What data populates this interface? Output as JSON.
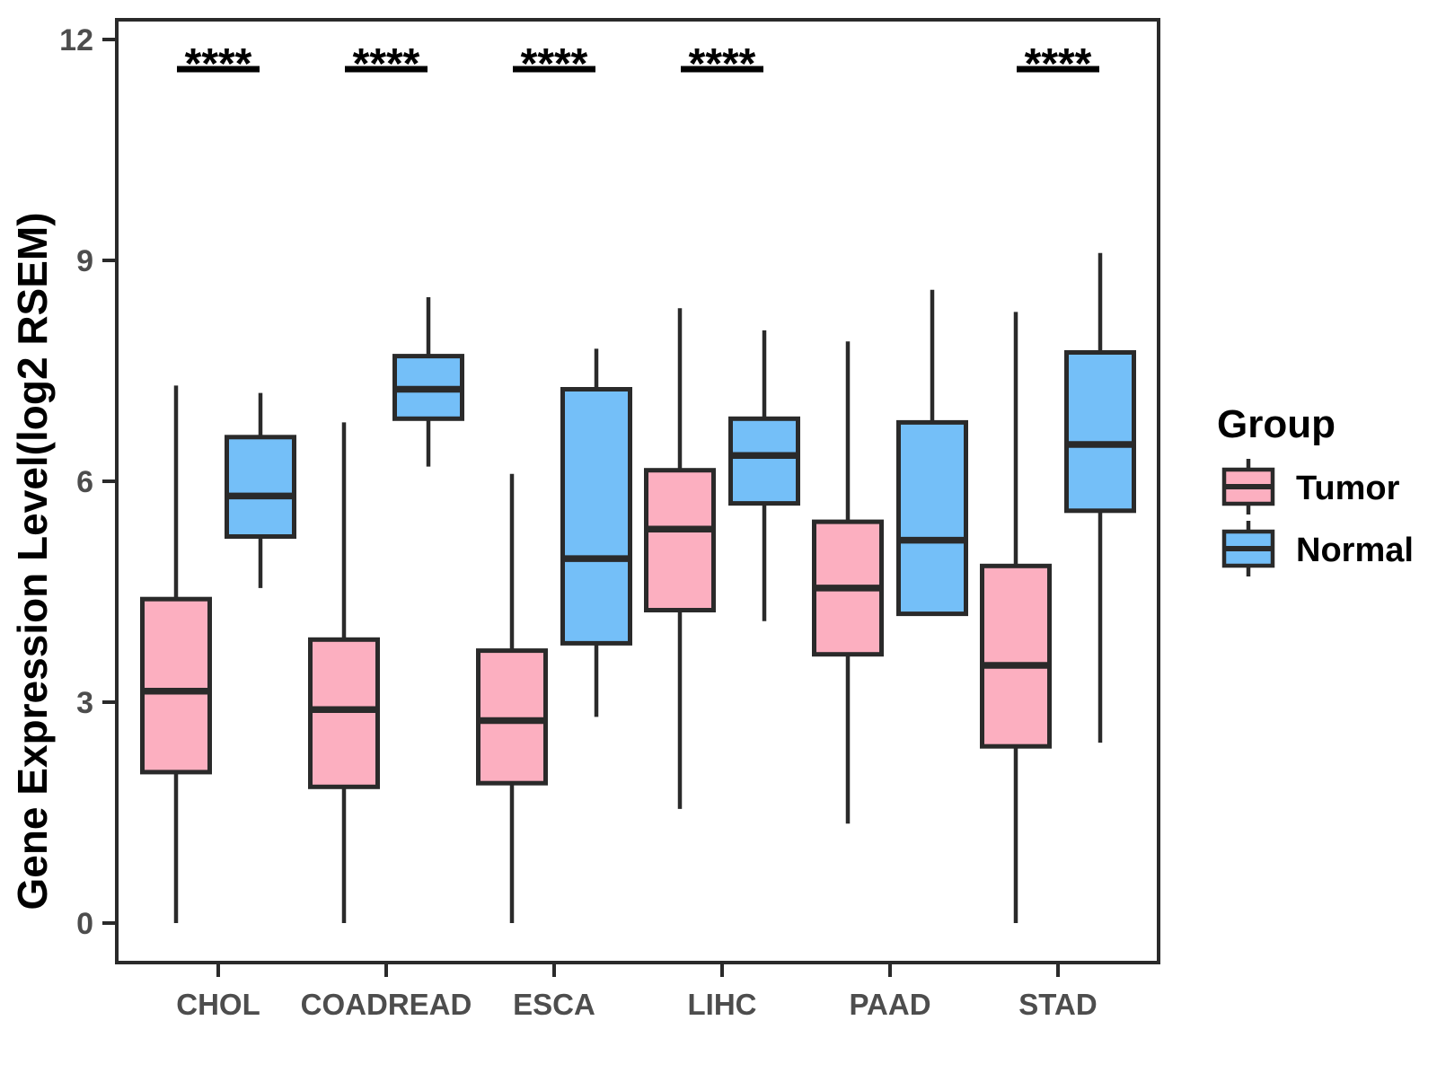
{
  "y_axis": {
    "label": "Gene Expression Level(log2 RSEM)",
    "ticks": [
      0,
      3,
      6,
      9,
      12
    ],
    "range": [
      0,
      12
    ]
  },
  "x_axis": {
    "categories": [
      "CHOL",
      "COADREAD",
      "ESCA",
      "LIHC",
      "PAAD",
      "STAD"
    ]
  },
  "legend": {
    "title": "Group",
    "items": [
      {
        "label": "Tumor",
        "color": "#FCAFC0"
      },
      {
        "label": "Normal",
        "color": "#74BFF8"
      }
    ]
  },
  "significance": {
    "label": "****",
    "categories": [
      "CHOL",
      "COADREAD",
      "ESCA",
      "LIHC",
      "STAD"
    ]
  },
  "chart_data": {
    "type": "boxplot",
    "title": "",
    "xlabel": "",
    "ylabel": "Gene Expression Level(log2 RSEM)",
    "ylim": [
      0,
      12
    ],
    "grid": false,
    "legend_position": "right",
    "categories": [
      "CHOL",
      "COADREAD",
      "ESCA",
      "LIHC",
      "PAAD",
      "STAD"
    ],
    "series": [
      {
        "name": "Tumor",
        "color": "#FCAFC0",
        "boxes": [
          {
            "category": "CHOL",
            "low": 0,
            "q1": 2.05,
            "median": 3.15,
            "q3": 4.4,
            "high": 7.3
          },
          {
            "category": "COADREAD",
            "low": 0,
            "q1": 1.85,
            "median": 2.9,
            "q3": 3.85,
            "high": 6.8
          },
          {
            "category": "ESCA",
            "low": 0,
            "q1": 1.9,
            "median": 2.75,
            "q3": 3.7,
            "high": 6.1
          },
          {
            "category": "LIHC",
            "low": 1.55,
            "q1": 4.25,
            "median": 5.35,
            "q3": 6.15,
            "high": 8.35
          },
          {
            "category": "PAAD",
            "low": 1.35,
            "q1": 3.65,
            "median": 4.55,
            "q3": 5.45,
            "high": 7.9
          },
          {
            "category": "STAD",
            "low": 0,
            "q1": 2.4,
            "median": 3.5,
            "q3": 4.85,
            "high": 8.3
          }
        ]
      },
      {
        "name": "Normal",
        "color": "#74BFF8",
        "boxes": [
          {
            "category": "CHOL",
            "low": 4.55,
            "q1": 5.25,
            "median": 5.8,
            "q3": 6.6,
            "high": 7.2
          },
          {
            "category": "COADREAD",
            "low": 6.2,
            "q1": 6.85,
            "median": 7.25,
            "q3": 7.7,
            "high": 8.5
          },
          {
            "category": "ESCA",
            "low": 2.8,
            "q1": 3.8,
            "median": 4.95,
            "q3": 7.25,
            "high": 7.8
          },
          {
            "category": "LIHC",
            "low": 4.1,
            "q1": 5.7,
            "median": 6.35,
            "q3": 6.85,
            "high": 8.05
          },
          {
            "category": "PAAD",
            "low": 4.2,
            "q1": 4.2,
            "median": 5.2,
            "q3": 6.8,
            "high": 8.6
          },
          {
            "category": "STAD",
            "low": 2.45,
            "q1": 5.6,
            "median": 6.5,
            "q3": 7.75,
            "high": 9.1
          }
        ]
      }
    ]
  }
}
